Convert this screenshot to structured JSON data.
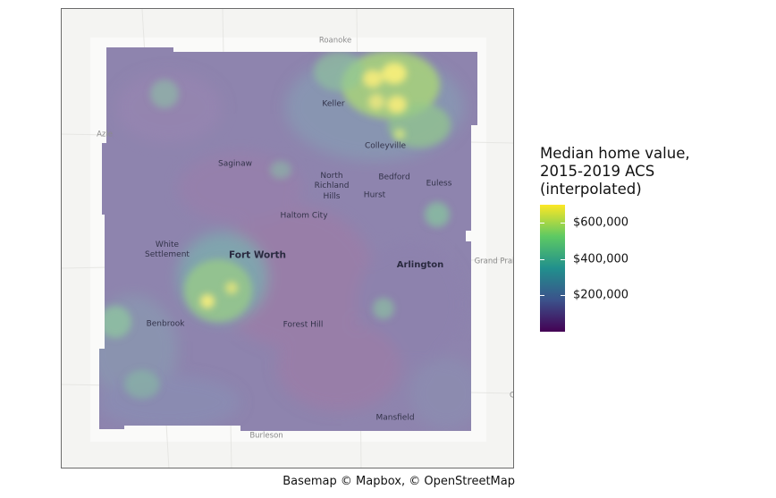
{
  "map": {
    "places": [
      {
        "id": "roanoke",
        "label": "Roanoke",
        "style": "outside"
      },
      {
        "id": "keller",
        "label": "Keller",
        "style": "mid"
      },
      {
        "id": "azle",
        "label": "Azle",
        "style": "outside"
      },
      {
        "id": "colleyville",
        "label": "Colleyville",
        "style": "mid"
      },
      {
        "id": "saginaw",
        "label": "Saginaw",
        "style": "mid"
      },
      {
        "id": "north-richland-hills",
        "label": "North\nRichland\nHills",
        "style": "mid"
      },
      {
        "id": "bedford",
        "label": "Bedford",
        "style": "mid"
      },
      {
        "id": "euless",
        "label": "Euless",
        "style": "mid"
      },
      {
        "id": "hurst",
        "label": "Hurst",
        "style": "mid"
      },
      {
        "id": "haltom-city",
        "label": "Haltom City",
        "style": "mid"
      },
      {
        "id": "white-settlement",
        "label": "White\nSettlement",
        "style": "mid"
      },
      {
        "id": "fort-worth",
        "label": "Fort Worth",
        "style": "big"
      },
      {
        "id": "arlington",
        "label": "Arlington",
        "style": "bigsoft"
      },
      {
        "id": "grand-prairie",
        "label": "Grand Prai",
        "style": "outside"
      },
      {
        "id": "benbrook",
        "label": "Benbrook",
        "style": "mid"
      },
      {
        "id": "forest-hill",
        "label": "Forest Hill",
        "style": "mid"
      },
      {
        "id": "mansfield",
        "label": "Mansfield",
        "style": "mid"
      },
      {
        "id": "burleson",
        "label": "Burleson",
        "style": "outside"
      },
      {
        "id": "edge-c",
        "label": "C",
        "style": "outside"
      }
    ]
  },
  "legend": {
    "title": "Median home value,\n2015-2019 ACS\n(interpolated)",
    "scale_min": 0,
    "scale_max": 700000,
    "ticks": [
      {
        "value": 200000,
        "label": "$200,000"
      },
      {
        "value": 400000,
        "label": "$400,000"
      },
      {
        "value": 600000,
        "label": "$600,000"
      }
    ],
    "colors": [
      "#440154",
      "#3b528b",
      "#21908d",
      "#5dc963",
      "#fde725"
    ]
  },
  "caption": "Basemap © Mapbox, © OpenStreetMap"
}
